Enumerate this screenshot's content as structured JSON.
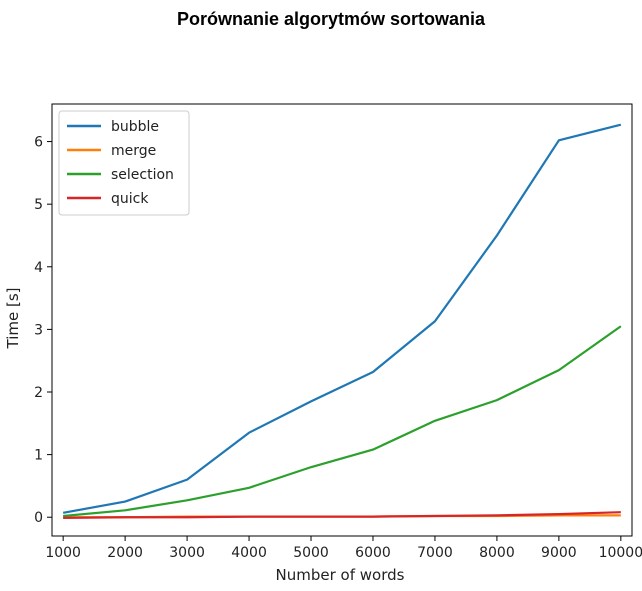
{
  "chart_data": {
    "type": "line",
    "title": "Porównanie algorytmów sortowania",
    "xlabel": "Number of words",
    "ylabel": "Time [s]",
    "x": [
      1000,
      2000,
      3000,
      4000,
      5000,
      6000,
      7000,
      8000,
      9000,
      10000
    ],
    "xlim": [
      820,
      10180
    ],
    "ylim": [
      -0.3,
      6.6
    ],
    "xticks": [
      "1000",
      "2000",
      "3000",
      "4000",
      "5000",
      "6000",
      "7000",
      "8000",
      "9000",
      "10000"
    ],
    "yticks": [
      0,
      1,
      2,
      3,
      4,
      5,
      6
    ],
    "grid": false,
    "legend_position": "top-left",
    "series": [
      {
        "name": "bubble",
        "color": "#1f77b4",
        "values": [
          0.07,
          0.25,
          0.6,
          1.35,
          1.85,
          2.32,
          3.13,
          4.5,
          6.02,
          6.27
        ]
      },
      {
        "name": "merge",
        "color": "#ff7f0e",
        "values": [
          0.0,
          0.0,
          0.01,
          0.01,
          0.01,
          0.01,
          0.02,
          0.02,
          0.03,
          0.03
        ]
      },
      {
        "name": "selection",
        "color": "#2ca02c",
        "values": [
          0.02,
          0.11,
          0.27,
          0.47,
          0.8,
          1.08,
          1.54,
          1.87,
          2.35,
          3.05
        ]
      },
      {
        "name": "quick",
        "color": "#d62728",
        "values": [
          -0.01,
          0.0,
          0.0,
          0.01,
          0.01,
          0.01,
          0.02,
          0.03,
          0.05,
          0.08
        ]
      }
    ]
  }
}
